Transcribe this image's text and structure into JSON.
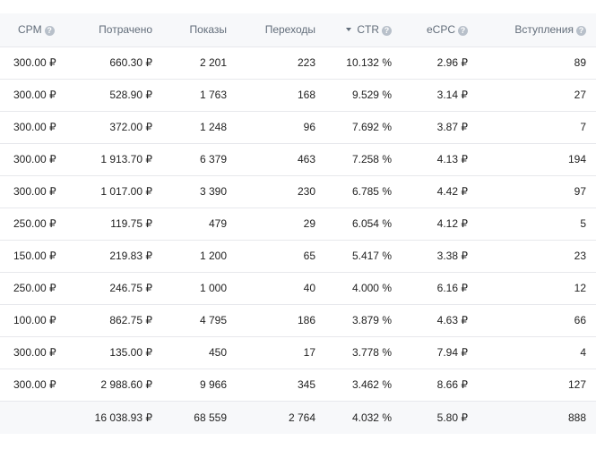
{
  "table": {
    "columns": [
      {
        "label": "CPM",
        "help": true,
        "sorted": false
      },
      {
        "label": "Потрачено",
        "help": false,
        "sorted": false
      },
      {
        "label": "Показы",
        "help": false,
        "sorted": false
      },
      {
        "label": "Переходы",
        "help": false,
        "sorted": false
      },
      {
        "label": "CTR",
        "help": true,
        "sorted": true
      },
      {
        "label": "eCPC",
        "help": true,
        "sorted": false
      },
      {
        "label": "Вступления",
        "help": true,
        "sorted": false
      }
    ],
    "help_glyph": "?",
    "rows": [
      [
        "300.00 ₽",
        "660.30 ₽",
        "2 201",
        "223",
        "10.132 %",
        "2.96 ₽",
        "89"
      ],
      [
        "300.00 ₽",
        "528.90 ₽",
        "1 763",
        "168",
        "9.529 %",
        "3.14 ₽",
        "27"
      ],
      [
        "300.00 ₽",
        "372.00 ₽",
        "1 248",
        "96",
        "7.692 %",
        "3.87 ₽",
        "7"
      ],
      [
        "300.00 ₽",
        "1 913.70 ₽",
        "6 379",
        "463",
        "7.258 %",
        "4.13 ₽",
        "194"
      ],
      [
        "300.00 ₽",
        "1 017.00 ₽",
        "3 390",
        "230",
        "6.785 %",
        "4.42 ₽",
        "97"
      ],
      [
        "250.00 ₽",
        "119.75 ₽",
        "479",
        "29",
        "6.054 %",
        "4.12 ₽",
        "5"
      ],
      [
        "150.00 ₽",
        "219.83 ₽",
        "1 200",
        "65",
        "5.417 %",
        "3.38 ₽",
        "23"
      ],
      [
        "250.00 ₽",
        "246.75 ₽",
        "1 000",
        "40",
        "4.000 %",
        "6.16 ₽",
        "12"
      ],
      [
        "100.00 ₽",
        "862.75 ₽",
        "4 795",
        "186",
        "3.879 %",
        "4.63 ₽",
        "66"
      ],
      [
        "300.00 ₽",
        "135.00 ₽",
        "450",
        "17",
        "3.778 %",
        "7.94 ₽",
        "4"
      ],
      [
        "300.00 ₽",
        "2 988.60 ₽",
        "9 966",
        "345",
        "3.462 %",
        "8.66 ₽",
        "127"
      ]
    ],
    "totals": [
      "",
      "16 038.93 ₽",
      "68 559",
      "2 764",
      "4.032 %",
      "5.80 ₽",
      "888"
    ]
  },
  "colors": {
    "header_bg": "#f7f8fa",
    "header_text": "#626d7a",
    "border": "#e7e8ec",
    "help_icon": "#b8c0ca"
  }
}
